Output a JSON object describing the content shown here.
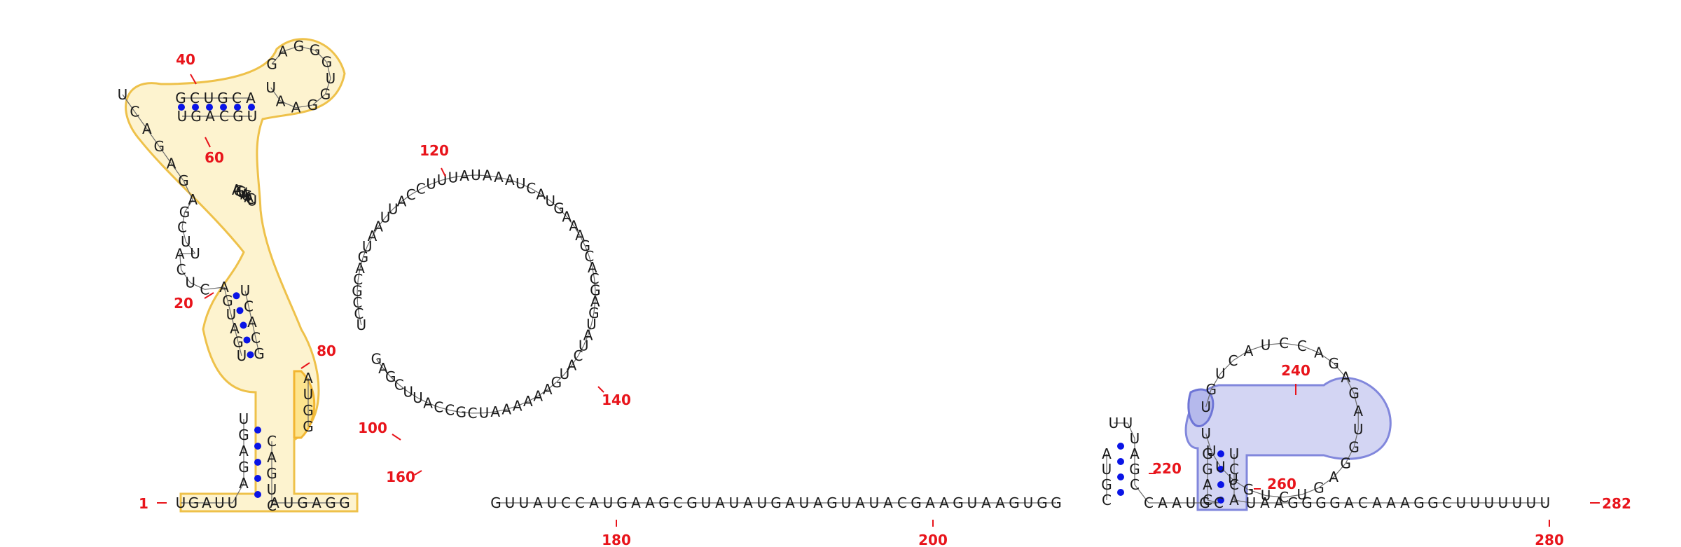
{
  "structure": {
    "sequence_length": 282,
    "colors": {
      "pair_dot": "#0a14e6",
      "position_label": "#e8141b",
      "yellow_highlight": "#fdf3cf",
      "blue_highlight": "#d3d5f3"
    },
    "segments": {
      "base_5prime": "UGAUU",
      "stem1_left": "AGAGU",
      "stem2_left": "UGAUGA",
      "inner_loop_left": "CUCA",
      "ml_junction": "UUCGA",
      "branch_left": "GAGACU",
      "hairpin1_stem_5": "GCUGCA",
      "hairpin1_loop": "GAGGGUGGAAU",
      "hairpin1_stem_3": "UGCAGU",
      "branch_right": "AGGUAGACU",
      "stem2_right": "UCACG",
      "bulge_80": "AUGG",
      "stem1_right": "CAGUC",
      "linker_3prime": "AUGAGG",
      "big_loop_5": "UCCGCAGUAAUUACCUUUAUAAAUCAUGAAAGCACGAGUAUCAUGAAAAAAUCGCCAUUCGAGU",
      "mid_sequence": "GUUAUCCAUGAAGCGUAUAUGAUAGUAUACGAAGUAAGUGG",
      "hp2_stem_5": "CGUA",
      "hp2_loop": "UU",
      "hp2_stem_3": "UAGC",
      "linker_2": "CAAUGC",
      "hp3_stem_5": "CAGG",
      "hp3_loop_region": "UGUCAUCCAGAGAUGGAGUCUGUUUU",
      "hp3_stem_3": "UCCA",
      "tail_3prime": "UAAGGGGACAAAGGCUUUUUUU"
    },
    "labels": [
      "1",
      "20",
      "40",
      "60",
      "80",
      "100",
      "120",
      "140",
      "160",
      "180",
      "200",
      "220",
      "240",
      "260",
      "280",
      "282"
    ]
  }
}
